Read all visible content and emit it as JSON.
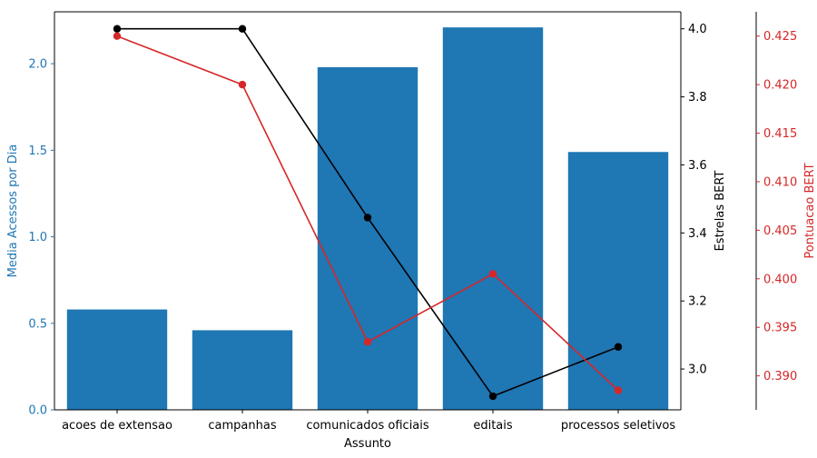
{
  "chart_data": {
    "type": "bar",
    "title": "",
    "xlabel": "Assunto",
    "categories": [
      "acoes de extensao",
      "campanhas",
      "comunicados oficiais",
      "editais",
      "processos seletivos"
    ],
    "axes": {
      "left": {
        "label": "Media Acessos por Dia",
        "ylim": [
          0,
          2.3
        ],
        "ticks": [
          0.0,
          0.5,
          1.0,
          1.5,
          2.0
        ],
        "tick_labels": [
          "0.0",
          "0.5",
          "1.0",
          "1.5",
          "2.0"
        ],
        "color": "#1f77b4"
      },
      "right1": {
        "label": "Estrelas BERT",
        "ylim": [
          2.88,
          4.05
        ],
        "ticks": [
          3.0,
          3.2,
          3.4,
          3.6,
          3.8,
          4.0
        ],
        "tick_labels": [
          "3.0",
          "3.2",
          "3.4",
          "3.6",
          "3.8",
          "4.0"
        ],
        "color": "#000000"
      },
      "right2": {
        "label": "Pontuacao BERT",
        "ylim": [
          0.3865,
          0.4275
        ],
        "ticks": [
          0.39,
          0.395,
          0.4,
          0.405,
          0.41,
          0.415,
          0.42,
          0.425
        ],
        "tick_labels": [
          "0.390",
          "0.395",
          "0.400",
          "0.405",
          "0.410",
          "0.415",
          "0.420",
          "0.425"
        ],
        "color": "#d62728"
      }
    },
    "series": [
      {
        "kind": "bar",
        "axis": "left",
        "color": "#1f77b4",
        "values": [
          0.58,
          0.46,
          1.98,
          2.21,
          1.49
        ]
      },
      {
        "kind": "line",
        "axis": "right1",
        "color": "#000000",
        "values": [
          4.0,
          4.0,
          3.445,
          2.92,
          3.065
        ]
      },
      {
        "kind": "line",
        "axis": "right2",
        "color": "#d62728",
        "values": [
          0.425,
          0.42,
          0.3935,
          0.4005,
          0.3885
        ]
      }
    ],
    "grid": false,
    "legend": "none"
  }
}
